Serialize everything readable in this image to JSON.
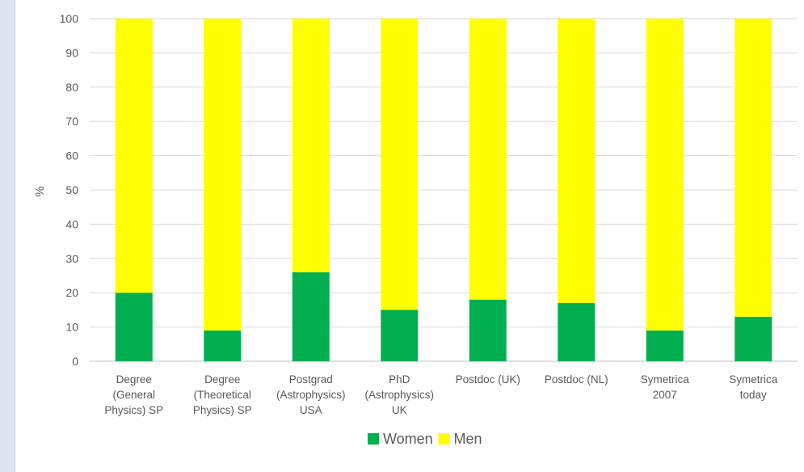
{
  "chart_data": {
    "type": "bar",
    "stacked": true,
    "percent_stacked": true,
    "categories": [
      [
        "Degree",
        "(General",
        "Physics) SP"
      ],
      [
        "Degree",
        "(Theoretical",
        "Physics) SP"
      ],
      [
        "Postgrad",
        "(Astrophysics)",
        "USA"
      ],
      [
        "PhD",
        "(Astrophysics)",
        "UK"
      ],
      [
        "Postdoc (UK)"
      ],
      [
        "Postdoc (NL)"
      ],
      [
        "Symetrica",
        "2007"
      ],
      [
        "Symetrica",
        "today"
      ]
    ],
    "series": [
      {
        "name": "Women",
        "color": "#00b050",
        "values": [
          20,
          9,
          26,
          15,
          18,
          17,
          9,
          13
        ]
      },
      {
        "name": "Men",
        "color": "#ffff00",
        "values": [
          80,
          91,
          74,
          85,
          82,
          83,
          91,
          87
        ]
      }
    ],
    "ylabel": "%",
    "ylim": [
      0,
      100
    ],
    "yticks": [
      "0",
      "10",
      "20",
      "30",
      "40",
      "50",
      "60",
      "70",
      "80",
      "90",
      "100"
    ],
    "grid": true,
    "legend_position": "bottom"
  }
}
